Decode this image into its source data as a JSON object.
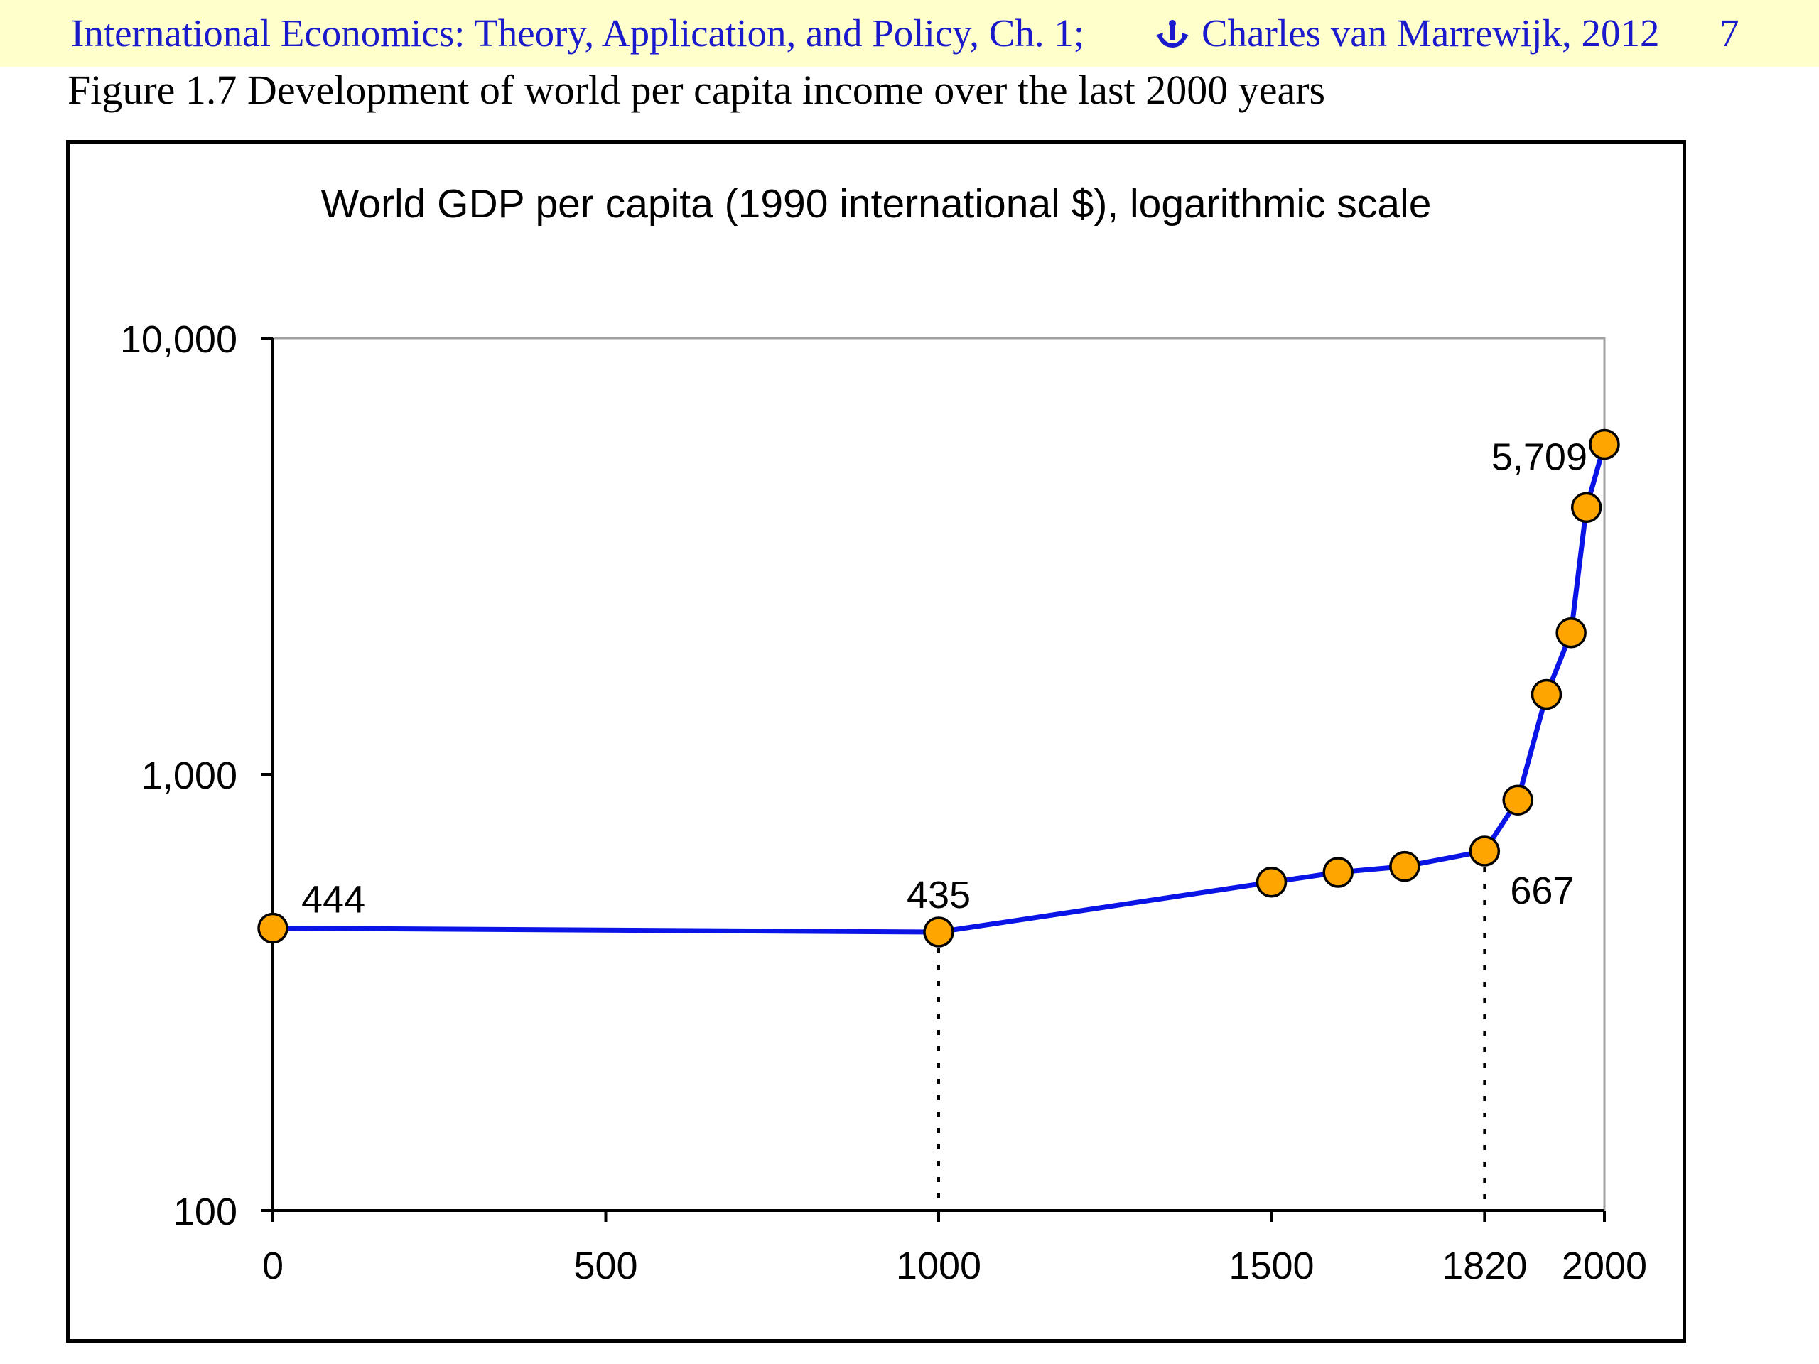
{
  "header": {
    "left": "International Economics: Theory, Application, and Policy, Ch. 1;",
    "right": "Charles van Marrewijk, 2012",
    "page": "7",
    "icon": "anchor-logo-icon"
  },
  "figure_title": "Figure 1.7 Development of world per capita income over the last 2000 years",
  "colors": {
    "line": "#0a14e6",
    "marker": "#ffa500",
    "header_bg": "#ffffcc",
    "header_text": "#1a1acc"
  },
  "chart_data": {
    "type": "line",
    "title": "World GDP per capita (1990 international $), logarithmic scale",
    "y_scale": "log",
    "xlim": [
      0,
      2000
    ],
    "ylim": [
      100,
      10000
    ],
    "x_ticks": [
      {
        "value": 0,
        "label": "0"
      },
      {
        "value": 500,
        "label": "500"
      },
      {
        "value": 1000,
        "label": "1000"
      },
      {
        "value": 1500,
        "label": "1500"
      },
      {
        "value": 1820,
        "label": "1820"
      },
      {
        "value": 2000,
        "label": "2000"
      }
    ],
    "y_ticks": [
      {
        "value": 100,
        "label": "100"
      },
      {
        "value": 1000,
        "label": "1,000"
      },
      {
        "value": 10000,
        "label": "10,000"
      }
    ],
    "series": [
      {
        "points": [
          {
            "x": 0,
            "y": 444
          },
          {
            "x": 1000,
            "y": 435
          },
          {
            "x": 1500,
            "y": 566
          },
          {
            "x": 1600,
            "y": 596
          },
          {
            "x": 1700,
            "y": 615
          },
          {
            "x": 1820,
            "y": 667
          },
          {
            "x": 1870,
            "y": 873
          },
          {
            "x": 1913,
            "y": 1525
          },
          {
            "x": 1950,
            "y": 2111
          },
          {
            "x": 1973,
            "y": 4091
          },
          {
            "x": 2000,
            "y": 5709
          }
        ]
      }
    ],
    "data_labels": [
      {
        "x": 0,
        "y": 444,
        "text": "444"
      },
      {
        "x": 1000,
        "y": 435,
        "text": "435"
      },
      {
        "x": 1820,
        "y": 667,
        "text": "667"
      },
      {
        "x": 2000,
        "y": 5709,
        "text": "5,709"
      }
    ],
    "reference_lines": [
      1000,
      1820
    ],
    "grid": false,
    "legend": "none"
  }
}
